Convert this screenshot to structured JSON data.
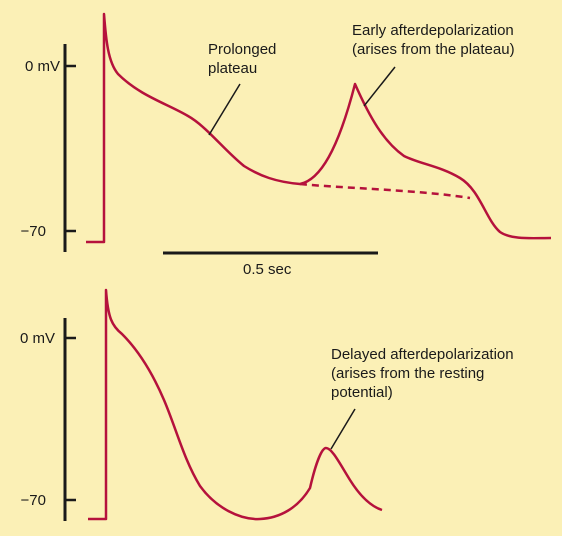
{
  "colors": {
    "background": "#fbf0b6",
    "trace": "#b5123c",
    "axis": "#1a1a1a"
  },
  "top_panel": {
    "axis_labels": {
      "zero": "0 mV",
      "resting": "−70"
    },
    "annotation_plateau": [
      "Prolonged",
      "plateau"
    ],
    "annotation_ead": [
      "Early afterdepolarization",
      "(arises from the plateau)"
    ],
    "scale_bar_label": "0.5 sec"
  },
  "bottom_panel": {
    "axis_labels": {
      "zero": "0 mV",
      "resting": "−70"
    },
    "annotation_dad": [
      "Delayed afterdepolarization",
      "(arises from the resting",
      "potential)"
    ]
  }
}
